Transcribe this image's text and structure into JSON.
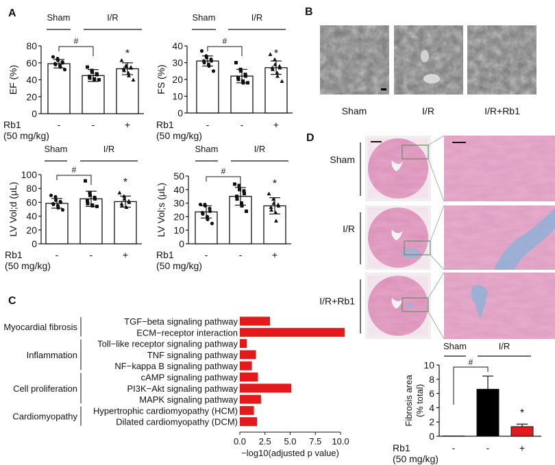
{
  "panel_labels": {
    "a": "A",
    "b": "B",
    "c": "C",
    "d": "D"
  },
  "common": {
    "sham": "Sham",
    "ir": "I/R",
    "ir_rb1": "I/R+Rb1",
    "rb1_label": "Rb1",
    "dose_label": "(50 mg/kg)",
    "treatment_signs": [
      "-",
      "-",
      "+"
    ],
    "sig_hash": "#",
    "sig_star": "*"
  },
  "colors": {
    "bar_red": "#e3191c",
    "bar_black": "#000000",
    "axis": "#111111",
    "zoom_box": "#5c8f6a"
  },
  "chart_data": [
    {
      "id": "ef",
      "type": "bar",
      "ylabel": "EF (%)",
      "ylim": [
        0,
        80
      ],
      "yticks": [
        0,
        20,
        40,
        60,
        80
      ],
      "categories": [
        "Sham",
        "I/R",
        "I/R+Rb1"
      ],
      "values": [
        59,
        45,
        53
      ],
      "errors": [
        5,
        7,
        7
      ],
      "points": [
        [
          67,
          65,
          63,
          61,
          60,
          59,
          58,
          57,
          55,
          52
        ],
        [
          55,
          51,
          49,
          47,
          46,
          44,
          42,
          41,
          40,
          40
        ],
        [
          63,
          57,
          56,
          55,
          54,
          53,
          51,
          48,
          45,
          40
        ]
      ],
      "markers": [
        "circle",
        "square",
        "triangle"
      ]
    },
    {
      "id": "fs",
      "type": "bar",
      "ylabel": "FS (%)",
      "ylim": [
        0,
        40
      ],
      "yticks": [
        0,
        10,
        20,
        30,
        40
      ],
      "categories": [
        "Sham",
        "I/R",
        "I/R+Rb1"
      ],
      "values": [
        31,
        22,
        27
      ],
      "errors": [
        3,
        4,
        4
      ],
      "points": [
        [
          37,
          34,
          33,
          32,
          31,
          31,
          30,
          29,
          28,
          25
        ],
        [
          30,
          26,
          25,
          23,
          22,
          21,
          20,
          19,
          18,
          18
        ],
        [
          35,
          32,
          29,
          28,
          27,
          27,
          26,
          24,
          22,
          19
        ]
      ],
      "markers": [
        "circle",
        "square",
        "triangle"
      ]
    },
    {
      "id": "lvvold",
      "type": "bar",
      "ylabel": "LV Vol;d (μL)",
      "ylim": [
        0,
        100
      ],
      "yticks": [
        0,
        20,
        40,
        60,
        80,
        100
      ],
      "categories": [
        "Sham",
        "I/R",
        "I/R+Rb1"
      ],
      "values": [
        58.5,
        65,
        61
      ],
      "errors": [
        7,
        11,
        8
      ],
      "points": [
        [
          70,
          68,
          63,
          61,
          60,
          58,
          57,
          55,
          52,
          49
        ],
        [
          91,
          74,
          70,
          67,
          65,
          62,
          58,
          56,
          55,
          54
        ],
        [
          74,
          69,
          65,
          62,
          60,
          58,
          55,
          53
        ]
      ],
      "markers": [
        "circle",
        "square",
        "triangle"
      ]
    },
    {
      "id": "lvvols",
      "type": "bar",
      "ylabel": "LV Vol;s (μL)",
      "ylim": [
        0,
        50
      ],
      "yticks": [
        0,
        10,
        20,
        30,
        40,
        50
      ],
      "categories": [
        "Sham",
        "I/R",
        "I/R+Rb1"
      ],
      "values": [
        23.5,
        35,
        28
      ],
      "errors": [
        4.5,
        6.5,
        6
      ],
      "points": [
        [
          29,
          29,
          28,
          26,
          24,
          23,
          22,
          20,
          18,
          15
        ],
        [
          44,
          43,
          40,
          39,
          37,
          35,
          33,
          30,
          28,
          24
        ],
        [
          37,
          33,
          30,
          29,
          28,
          27,
          25,
          23,
          17
        ]
      ],
      "markers": [
        "circle",
        "square",
        "triangle"
      ]
    },
    {
      "id": "kegg",
      "type": "bar",
      "orientation": "horizontal",
      "xlabel": "−log10(adjusted p value)",
      "xlim": [
        0,
        10
      ],
      "xticks": [
        "0.0",
        "2.5",
        "5.0",
        "7.5",
        "10.0"
      ],
      "categories": [
        "TGF−beta signaling pathway",
        "ECM−receptor interaction",
        "Toll−like receptor signaling pathway",
        "TNF signaling pathway",
        "NF−kappa B signaling pathway",
        "cAMP signaling pathway",
        "PI3K−Akt signaling pathway",
        "MAPK signaling pathway",
        "Hypertrophic cardiomyopathy (HCM)",
        "Dilated cardiomyopathy (DCM)"
      ],
      "values": [
        3.0,
        10.4,
        0.7,
        1.6,
        1.2,
        1.8,
        5.1,
        2.1,
        1.4,
        1.7
      ],
      "groups": [
        {
          "label": "Myocardial fibrosis",
          "rows": [
            0,
            1
          ]
        },
        {
          "label": "Inflammation",
          "rows": [
            2,
            4
          ]
        },
        {
          "label": "Cell proliferation",
          "rows": [
            5,
            7
          ]
        },
        {
          "label": "Cardiomyopathy",
          "rows": [
            8,
            9
          ]
        }
      ]
    },
    {
      "id": "fibrosis",
      "type": "bar",
      "ylabel": [
        "Fibrosis area",
        "(% total)"
      ],
      "ylim": [
        0,
        10
      ],
      "yticks": [
        0,
        2,
        4,
        6,
        8,
        10
      ],
      "categories": [
        "Sham",
        "I/R",
        "I/R+Rb1"
      ],
      "values": [
        0.05,
        6.6,
        1.35
      ],
      "errors": [
        0,
        1.85,
        0.35
      ],
      "bar_colors": [
        "#ffffff",
        "#000000",
        "#e3191c"
      ]
    }
  ],
  "panel_b": {
    "image_labels": [
      "Sham",
      "I/R",
      "I/R+Rb1"
    ]
  },
  "panel_d": {
    "row_labels": [
      "Sham",
      "I/R",
      "I/R+Rb1"
    ]
  }
}
